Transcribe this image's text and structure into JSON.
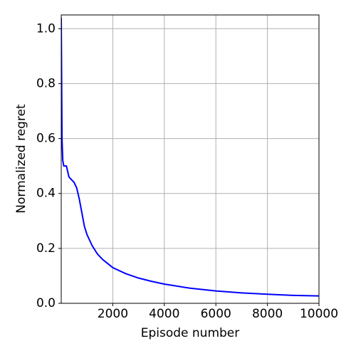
{
  "chart_data": {
    "type": "line",
    "x_label": "Episode number",
    "y_label": "Normalized regret",
    "x": [
      0,
      30,
      60,
      100,
      200,
      300,
      400,
      500,
      600,
      700,
      800,
      900,
      1000,
      1200,
      1400,
      1600,
      1800,
      2000,
      2500,
      3000,
      3500,
      4000,
      5000,
      6000,
      7000,
      8000,
      9000,
      10000
    ],
    "series": [
      {
        "color": "#0000ff",
        "values": [
          1.04,
          0.6,
          0.52,
          0.5,
          0.5,
          0.46,
          0.45,
          0.44,
          0.42,
          0.38,
          0.33,
          0.28,
          0.25,
          0.21,
          0.18,
          0.16,
          0.145,
          0.13,
          0.108,
          0.092,
          0.08,
          0.07,
          0.055,
          0.045,
          0.038,
          0.033,
          0.029,
          0.027
        ]
      }
    ],
    "xlim": [
      0,
      10000
    ],
    "ylim": [
      0,
      1.05
    ],
    "xticks": [
      2000,
      4000,
      6000,
      8000,
      10000
    ],
    "yticks": [
      {
        "value": 0,
        "label": "0.0"
      },
      0.2,
      0.4,
      0.6,
      0.8,
      {
        "value": 1,
        "label": "1.0"
      }
    ],
    "grid": true
  }
}
